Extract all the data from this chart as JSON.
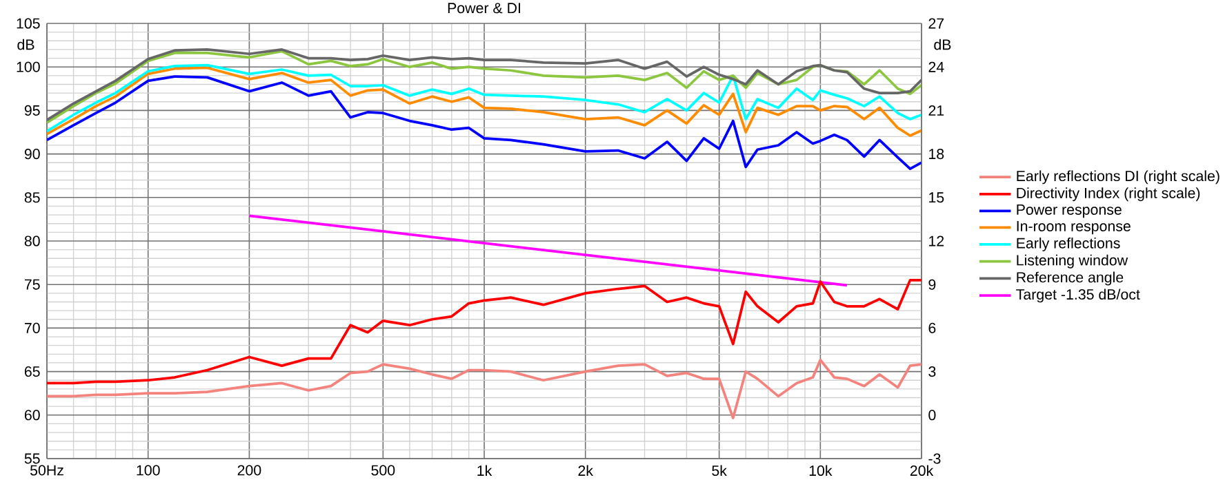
{
  "chart_data": {
    "type": "line",
    "title": "Power & DI",
    "ylabel": "dB",
    "y2label": "dB",
    "log": "x",
    "grid": true,
    "legend": "right",
    "xlim": [
      50,
      20000
    ],
    "xticks": [
      {
        "value": 50,
        "label": "50Hz"
      },
      100,
      200,
      500,
      {
        "value": 1000,
        "label": "1k"
      },
      {
        "value": 2000,
        "label": "2k"
      },
      {
        "value": 5000,
        "label": "5k"
      },
      {
        "value": 10000,
        "label": "10k"
      },
      {
        "value": 20000,
        "label": "20k"
      }
    ],
    "ylim": [
      55,
      105
    ],
    "yticks": [
      55,
      60,
      65,
      70,
      75,
      80,
      85,
      90,
      95,
      100,
      105
    ],
    "y2lim": [
      -3,
      27
    ],
    "y2ticks": [
      -3,
      0,
      3,
      6,
      9,
      12,
      15,
      18,
      21,
      24,
      27
    ],
    "x": [
      50,
      60,
      70,
      80,
      100,
      120,
      150,
      200,
      250,
      300,
      350,
      400,
      450,
      500,
      600,
      700,
      800,
      900,
      1000,
      1200,
      1500,
      2000,
      2500,
      3000,
      3500,
      4000,
      4500,
      5000,
      5500,
      6000,
      6500,
      7500,
      8500,
      9500,
      10000,
      11000,
      12000,
      13500,
      15000,
      17000,
      18500,
      20000
    ],
    "series": [
      {
        "name": "Early reflections DI (right scale)",
        "color": "#f4837d",
        "axis": "y2",
        "values": [
          1.3,
          1.3,
          1.4,
          1.4,
          1.5,
          1.5,
          1.6,
          2.0,
          2.2,
          1.7,
          2.0,
          2.9,
          3.0,
          3.5,
          3.2,
          2.8,
          2.5,
          3.1,
          3.1,
          3.0,
          2.4,
          3.0,
          3.4,
          3.5,
          2.7,
          2.9,
          2.5,
          2.5,
          -0.2,
          3.0,
          2.5,
          1.3,
          2.2,
          2.6,
          3.8,
          2.6,
          2.5,
          2.0,
          2.8,
          1.9,
          3.4,
          3.5
        ]
      },
      {
        "name": "Directivity Index (right scale)",
        "color": "#ff0000",
        "axis": "y2",
        "values": [
          2.2,
          2.2,
          2.3,
          2.3,
          2.4,
          2.6,
          3.1,
          4.0,
          3.4,
          3.9,
          3.9,
          6.2,
          5.7,
          6.5,
          6.2,
          6.6,
          6.8,
          7.7,
          7.9,
          8.1,
          7.6,
          8.4,
          8.7,
          8.9,
          7.8,
          8.1,
          7.7,
          7.5,
          4.9,
          8.5,
          7.5,
          6.4,
          7.5,
          7.7,
          9.2,
          7.8,
          7.5,
          7.5,
          8.0,
          7.3,
          9.3,
          9.3
        ]
      },
      {
        "name": "Power response",
        "color": "#0000ff",
        "values": [
          91.6,
          93.3,
          94.7,
          95.9,
          98.4,
          98.9,
          98.8,
          97.2,
          98.2,
          96.7,
          97.2,
          94.2,
          94.8,
          94.7,
          93.8,
          93.3,
          92.8,
          93.0,
          91.8,
          91.6,
          91.1,
          90.3,
          90.4,
          89.5,
          91.4,
          89.2,
          91.8,
          90.6,
          93.8,
          88.5,
          90.5,
          91.0,
          92.5,
          91.2,
          91.5,
          92.2,
          91.6,
          89.7,
          91.6,
          89.6,
          88.3,
          89.0
        ]
      },
      {
        "name": "In-room response",
        "color": "#ff8c00",
        "values": [
          92.3,
          94.0,
          95.5,
          96.6,
          99.2,
          99.8,
          99.9,
          98.6,
          99.3,
          98.2,
          98.5,
          96.7,
          97.3,
          97.4,
          95.8,
          96.6,
          96.0,
          96.5,
          95.3,
          95.2,
          94.8,
          94.0,
          94.2,
          93.3,
          95.0,
          93.5,
          95.6,
          94.5,
          96.9,
          92.5,
          95.3,
          94.5,
          95.5,
          95.5,
          95.0,
          95.5,
          95.4,
          94.0,
          95.3,
          93.0,
          92.1,
          92.7
        ]
      },
      {
        "name": "Early reflections",
        "color": "#00ffff",
        "values": [
          92.6,
          94.5,
          95.9,
          97.0,
          99.5,
          100.1,
          100.2,
          99.2,
          99.7,
          99.0,
          99.1,
          97.8,
          97.8,
          97.9,
          96.7,
          97.4,
          96.9,
          97.5,
          96.8,
          96.7,
          96.6,
          96.2,
          95.7,
          94.8,
          96.3,
          95.0,
          97.0,
          95.9,
          99.0,
          94.0,
          96.3,
          95.3,
          97.5,
          96.2,
          97.3,
          96.8,
          96.4,
          95.5,
          96.6,
          94.7,
          94.0,
          94.5
        ]
      },
      {
        "name": "Listening window",
        "color": "#8dc63f",
        "values": [
          93.6,
          95.5,
          97.0,
          98.1,
          100.7,
          101.6,
          101.6,
          101.1,
          101.8,
          100.3,
          100.7,
          100.1,
          100.3,
          100.9,
          100.0,
          100.5,
          99.8,
          100.0,
          99.8,
          99.6,
          99.0,
          98.8,
          99.0,
          98.5,
          99.3,
          97.6,
          99.5,
          98.5,
          99.0,
          97.6,
          99.3,
          98.0,
          98.5,
          100.0,
          100.2,
          99.6,
          99.5,
          98.0,
          99.6,
          97.5,
          96.9,
          97.9
        ]
      },
      {
        "name": "Reference angle",
        "color": "#666666",
        "values": [
          93.9,
          95.8,
          97.2,
          98.4,
          100.9,
          101.9,
          102.0,
          101.5,
          102.0,
          101.0,
          101.0,
          100.8,
          100.9,
          101.3,
          100.8,
          101.1,
          100.9,
          101.0,
          100.8,
          100.8,
          100.5,
          100.4,
          100.8,
          99.8,
          100.6,
          98.9,
          100.0,
          99.1,
          98.6,
          98.0,
          99.6,
          98.0,
          99.5,
          100.1,
          100.2,
          99.6,
          99.4,
          97.5,
          97.0,
          97.0,
          97.2,
          98.5
        ]
      },
      {
        "name": "Target -1.35 dB/oct",
        "color": "#ff00ff",
        "x": [
          200,
          12000
        ],
        "values": [
          82.9,
          74.9
        ]
      }
    ]
  }
}
